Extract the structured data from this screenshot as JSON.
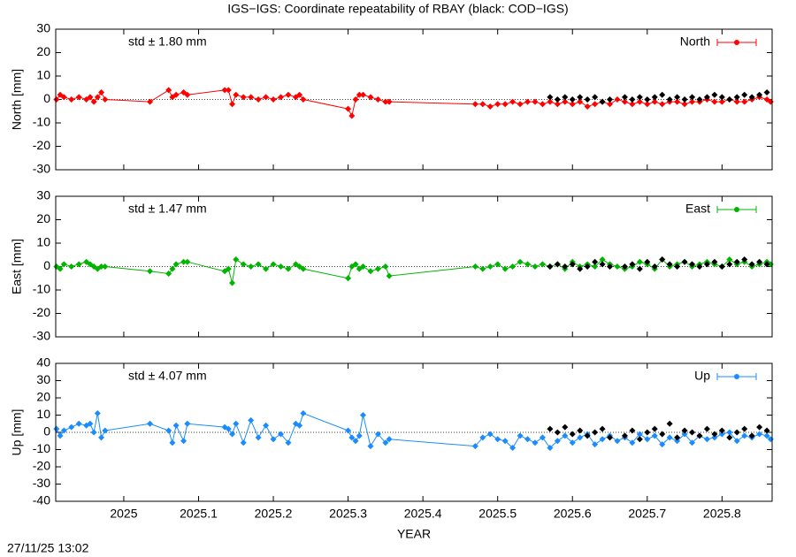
{
  "title": "IGS−IGS: Coordinate repeatability of RBAY (black: COD−IGS)",
  "timestamp": "27/11/25 13:02",
  "chart_data": [
    {
      "type": "line",
      "ylabel": "North [mm]",
      "annotation": "std ± 1.80 mm",
      "annotation_color": "#ff0000",
      "legend": "top-right",
      "zeroaxis": true,
      "xlim": [
        2024.909,
        2025.867
      ],
      "xticks": [
        2025,
        2025.1,
        2025.2,
        2025.3,
        2025.4,
        2025.5,
        2025.6,
        2025.7,
        2025.8
      ],
      "ylim": [
        -30,
        30
      ],
      "yticks": [
        -30,
        -20,
        -10,
        0,
        10,
        20,
        30
      ],
      "series": [
        {
          "name": "North",
          "color": "#ff0000",
          "style": "linespoints",
          "x": [
            2024.91,
            2024.915,
            2024.92,
            2024.93,
            2024.94,
            2024.95,
            2024.955,
            2024.96,
            2024.965,
            2024.97,
            2024.975,
            2025.035,
            2025.06,
            2025.065,
            2025.07,
            2025.08,
            2025.085,
            2025.135,
            2025.14,
            2025.145,
            2025.15,
            2025.16,
            2025.17,
            2025.18,
            2025.19,
            2025.2,
            2025.21,
            2025.22,
            2025.23,
            2025.235,
            2025.24,
            2025.3,
            2025.305,
            2025.31,
            2025.315,
            2025.32,
            2025.33,
            2025.34,
            2025.35,
            2025.355,
            2025.47,
            2025.48,
            2025.49,
            2025.5,
            2025.51,
            2025.52,
            2025.53,
            2025.54,
            2025.55,
            2025.56,
            2025.57,
            2025.58,
            2025.59,
            2025.6,
            2025.61,
            2025.62,
            2025.63,
            2025.64,
            2025.65,
            2025.66,
            2025.67,
            2025.68,
            2025.69,
            2025.7,
            2025.71,
            2025.72,
            2025.73,
            2025.74,
            2025.75,
            2025.76,
            2025.77,
            2025.78,
            2025.79,
            2025.8,
            2025.81,
            2025.82,
            2025.83,
            2025.84,
            2025.85,
            2025.86,
            2025.865
          ],
          "values": [
            0,
            2,
            1,
            0,
            1,
            0,
            1,
            -1,
            1,
            3,
            0,
            -1,
            4,
            1,
            2,
            3,
            2,
            4,
            4,
            -2,
            2,
            1,
            1,
            0,
            1,
            0,
            1,
            2,
            1,
            2,
            0,
            -4,
            -7,
            0,
            2,
            2,
            1,
            0,
            -1,
            -1,
            -2,
            -2,
            -3,
            -2,
            -2,
            -1,
            -2,
            -1,
            -1,
            -2,
            -1,
            -2,
            -1,
            -2,
            -1,
            -3,
            -2,
            -1,
            -2,
            0,
            -1,
            -2,
            -1,
            -2,
            -1,
            -2,
            -1,
            -1,
            -2,
            -1,
            -1,
            0,
            -1,
            -1,
            0,
            -1,
            -1,
            0,
            1,
            0,
            -1
          ]
        },
        {
          "color": "#000000",
          "style": "points",
          "x": [
            2025.57,
            2025.58,
            2025.59,
            2025.6,
            2025.61,
            2025.62,
            2025.63,
            2025.64,
            2025.65,
            2025.67,
            2025.68,
            2025.69,
            2025.7,
            2025.71,
            2025.72,
            2025.73,
            2025.74,
            2025.75,
            2025.76,
            2025.77,
            2025.78,
            2025.79,
            2025.8,
            2025.81,
            2025.82,
            2025.83,
            2025.84,
            2025.85,
            2025.86
          ],
          "values": [
            1,
            0,
            1,
            0,
            1,
            0,
            1,
            -1,
            0,
            1,
            0,
            1,
            0,
            1,
            2,
            0,
            1,
            0,
            1,
            0,
            1,
            2,
            1,
            0,
            1,
            2,
            1,
            2,
            3
          ]
        }
      ]
    },
    {
      "type": "line",
      "ylabel": "East [mm]",
      "annotation": "std ± 1.47 mm",
      "annotation_color": "#00b400",
      "legend": "top-right",
      "zeroaxis": true,
      "xlim": [
        2024.909,
        2025.867
      ],
      "xticks": [
        2025,
        2025.1,
        2025.2,
        2025.3,
        2025.4,
        2025.5,
        2025.6,
        2025.7,
        2025.8
      ],
      "ylim": [
        -30,
        30
      ],
      "yticks": [
        -30,
        -20,
        -10,
        0,
        10,
        20,
        30
      ],
      "series": [
        {
          "name": "East",
          "color": "#00b400",
          "style": "linespoints",
          "x": [
            2024.91,
            2024.915,
            2024.92,
            2024.93,
            2024.94,
            2024.95,
            2024.955,
            2024.96,
            2024.965,
            2024.97,
            2024.975,
            2025.035,
            2025.06,
            2025.065,
            2025.07,
            2025.08,
            2025.085,
            2025.135,
            2025.14,
            2025.145,
            2025.15,
            2025.16,
            2025.17,
            2025.18,
            2025.19,
            2025.2,
            2025.21,
            2025.22,
            2025.23,
            2025.235,
            2025.24,
            2025.3,
            2025.305,
            2025.31,
            2025.315,
            2025.32,
            2025.33,
            2025.34,
            2025.35,
            2025.355,
            2025.47,
            2025.48,
            2025.49,
            2025.5,
            2025.51,
            2025.52,
            2025.53,
            2025.54,
            2025.55,
            2025.56,
            2025.57,
            2025.58,
            2025.59,
            2025.6,
            2025.61,
            2025.62,
            2025.63,
            2025.64,
            2025.65,
            2025.66,
            2025.67,
            2025.68,
            2025.69,
            2025.7,
            2025.71,
            2025.72,
            2025.73,
            2025.74,
            2025.75,
            2025.76,
            2025.77,
            2025.78,
            2025.79,
            2025.8,
            2025.81,
            2025.82,
            2025.83,
            2025.84,
            2025.85,
            2025.86,
            2025.865
          ],
          "values": [
            0,
            -1,
            1,
            0,
            1,
            2,
            1,
            0,
            -1,
            0,
            0,
            -2,
            -3,
            -1,
            1,
            2,
            2,
            -2,
            -1,
            -7,
            3,
            1,
            0,
            1,
            -1,
            1,
            0,
            -1,
            1,
            0,
            -1,
            -5,
            0,
            1,
            -1,
            0,
            -2,
            -1,
            0,
            -4,
            0,
            -1,
            0,
            1,
            -1,
            0,
            2,
            1,
            0,
            1,
            0,
            1,
            -1,
            2,
            0,
            1,
            0,
            3,
            1,
            0,
            -1,
            0,
            2,
            1,
            -1,
            3,
            0,
            1,
            2,
            0,
            1,
            2,
            1,
            0,
            3,
            1,
            2,
            0,
            1,
            2,
            1
          ]
        },
        {
          "color": "#000000",
          "style": "points",
          "x": [
            2025.57,
            2025.58,
            2025.59,
            2025.6,
            2025.61,
            2025.62,
            2025.63,
            2025.64,
            2025.65,
            2025.67,
            2025.68,
            2025.69,
            2025.7,
            2025.71,
            2025.72,
            2025.73,
            2025.74,
            2025.75,
            2025.76,
            2025.77,
            2025.78,
            2025.79,
            2025.8,
            2025.81,
            2025.82,
            2025.83,
            2025.84,
            2025.85,
            2025.86
          ],
          "values": [
            0,
            1,
            0,
            1,
            -1,
            0,
            2,
            1,
            0,
            0,
            1,
            -1,
            2,
            0,
            3,
            1,
            0,
            2,
            1,
            0,
            1,
            2,
            0,
            1,
            2,
            3,
            1,
            2,
            1
          ]
        }
      ]
    },
    {
      "type": "line",
      "ylabel": "Up [mm]",
      "xlabel": "YEAR",
      "annotation": "std ± 4.07 mm",
      "annotation_color": "#1a8cff",
      "legend": "top-right",
      "zeroaxis": true,
      "xlim": [
        2024.909,
        2025.867
      ],
      "xticks": [
        2025,
        2025.1,
        2025.2,
        2025.3,
        2025.4,
        2025.5,
        2025.6,
        2025.7,
        2025.8
      ],
      "ylim": [
        -40,
        40
      ],
      "yticks": [
        -40,
        -30,
        -20,
        -10,
        0,
        10,
        20,
        30,
        40
      ],
      "series": [
        {
          "name": "Up",
          "color": "#1a8cff",
          "style": "linespoints",
          "x": [
            2024.91,
            2024.915,
            2024.92,
            2024.93,
            2024.94,
            2024.95,
            2024.955,
            2024.96,
            2024.965,
            2024.97,
            2024.975,
            2025.035,
            2025.06,
            2025.065,
            2025.07,
            2025.08,
            2025.085,
            2025.135,
            2025.14,
            2025.145,
            2025.15,
            2025.16,
            2025.17,
            2025.18,
            2025.19,
            2025.2,
            2025.21,
            2025.22,
            2025.23,
            2025.235,
            2025.24,
            2025.3,
            2025.305,
            2025.31,
            2025.315,
            2025.32,
            2025.33,
            2025.34,
            2025.35,
            2025.355,
            2025.47,
            2025.48,
            2025.49,
            2025.5,
            2025.51,
            2025.52,
            2025.53,
            2025.54,
            2025.55,
            2025.56,
            2025.57,
            2025.58,
            2025.59,
            2025.6,
            2025.61,
            2025.62,
            2025.63,
            2025.64,
            2025.65,
            2025.66,
            2025.67,
            2025.68,
            2025.69,
            2025.7,
            2025.71,
            2025.72,
            2025.73,
            2025.74,
            2025.75,
            2025.76,
            2025.77,
            2025.78,
            2025.79,
            2025.8,
            2025.81,
            2025.82,
            2025.83,
            2025.84,
            2025.85,
            2025.86,
            2025.865
          ],
          "values": [
            2,
            -2,
            1,
            3,
            5,
            4,
            5,
            0,
            11,
            -3,
            1,
            5,
            1,
            -6,
            4,
            -5,
            5,
            3,
            2,
            -1,
            5,
            -6,
            7,
            -3,
            4,
            -4,
            -1,
            -6,
            5,
            4,
            11,
            1,
            -3,
            -5,
            -2,
            10,
            -8,
            -1,
            -6,
            -4,
            -8,
            -3,
            -1,
            -4,
            -5,
            -9,
            -2,
            -4,
            -6,
            -3,
            -9,
            -5,
            -2,
            -6,
            -3,
            -1,
            -7,
            -4,
            -2,
            -5,
            -3,
            -6,
            -1,
            -4,
            -2,
            -7,
            -3,
            -5,
            -1,
            -6,
            -2,
            -4,
            -3,
            -1,
            0,
            -5,
            -2,
            -3,
            -1,
            -2,
            -4
          ]
        },
        {
          "color": "#000000",
          "style": "points",
          "x": [
            2025.57,
            2025.58,
            2025.59,
            2025.6,
            2025.61,
            2025.62,
            2025.63,
            2025.64,
            2025.65,
            2025.67,
            2025.68,
            2025.69,
            2025.7,
            2025.71,
            2025.72,
            2025.73,
            2025.74,
            2025.75,
            2025.76,
            2025.77,
            2025.78,
            2025.79,
            2025.8,
            2025.81,
            2025.82,
            2025.83,
            2025.84,
            2025.85,
            2025.86
          ],
          "values": [
            2,
            0,
            3,
            -1,
            1,
            -2,
            0,
            2,
            -3,
            -2,
            1,
            -4,
            0,
            2,
            -1,
            5,
            -3,
            1,
            0,
            -2,
            2,
            -1,
            1,
            -3,
            0,
            2,
            -2,
            3,
            1
          ]
        }
      ]
    }
  ]
}
